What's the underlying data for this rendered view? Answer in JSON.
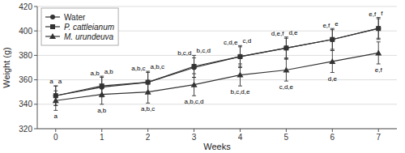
{
  "chart_data": {
    "type": "line",
    "x": [
      0,
      1,
      2,
      3,
      4,
      5,
      6,
      7
    ],
    "xlim": [
      -0.4,
      7.4
    ],
    "xticks": [
      0,
      1,
      2,
      3,
      4,
      5,
      6,
      7
    ],
    "ylim": [
      320,
      420
    ],
    "yticks": [
      320,
      340,
      360,
      380,
      400,
      420
    ],
    "xlabel": "Weeks",
    "ylabel": "Weight (g)",
    "grid": true,
    "legend": "upper left",
    "series": [
      {
        "name": "Water",
        "color": "#333333",
        "marker": "circle",
        "values": [
          347,
          354,
          358,
          370,
          379,
          386,
          393,
          402
        ],
        "errors": [
          8,
          8,
          8,
          8,
          8,
          8,
          8,
          8
        ],
        "annotations": [
          "a",
          "a,b",
          "a,b,c",
          "b,c,d",
          "c,d,e",
          "d,e,f",
          "e,f",
          "e,f"
        ]
      },
      {
        "name": "P. cattleianum",
        "color": "#333333",
        "marker": "square",
        "values": [
          347,
          355,
          358,
          371,
          379,
          386,
          393,
          402
        ],
        "errors": [
          8,
          8,
          9,
          9,
          9,
          9,
          9,
          9
        ],
        "annotations": [
          "a",
          "a,b",
          "a,b,c",
          "b,c,d",
          "c,d",
          "d,e",
          "e",
          "f"
        ]
      },
      {
        "name": "M. urundeuva",
        "color": "#333333",
        "marker": "triangle",
        "values": [
          343,
          348,
          350,
          356,
          364,
          368,
          375,
          382
        ],
        "errors": [
          8,
          8,
          9,
          9,
          9,
          9,
          9,
          9
        ],
        "annotations": [
          "a",
          "a,b",
          "a,b,c",
          "a,b,c,d",
          "b,c,d,e",
          "c,d,e",
          "d,e",
          "e,f"
        ]
      }
    ]
  }
}
